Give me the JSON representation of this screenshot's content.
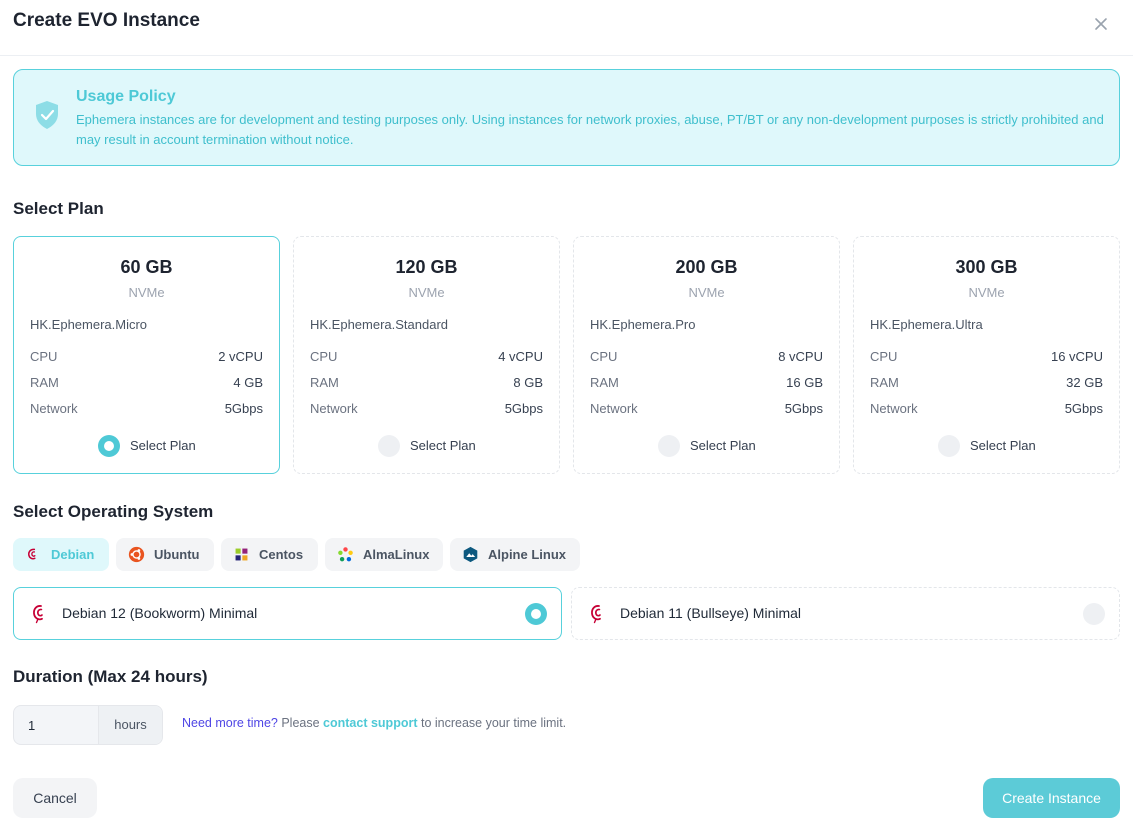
{
  "dialog": {
    "title": "Create EVO Instance"
  },
  "policy": {
    "title": "Usage Policy",
    "text": "Ephemera instances are for development and testing purposes only. Using instances for network proxies, abuse, PT/BT or any non-development purposes is strictly prohibited and may result in account termination without notice."
  },
  "plans_section": {
    "title": "Select Plan"
  },
  "plans": [
    {
      "size": "60 GB",
      "disk": "NVMe",
      "name": "HK.Ephemera.Micro",
      "cpu_label": "CPU",
      "cpu": "2 vCPU",
      "ram_label": "RAM",
      "ram": "4 GB",
      "net_label": "Network",
      "net": "5Gbps",
      "select_label": "Select Plan",
      "selected": true
    },
    {
      "size": "120 GB",
      "disk": "NVMe",
      "name": "HK.Ephemera.Standard",
      "cpu_label": "CPU",
      "cpu": "4 vCPU",
      "ram_label": "RAM",
      "ram": "8 GB",
      "net_label": "Network",
      "net": "5Gbps",
      "select_label": "Select Plan",
      "selected": false
    },
    {
      "size": "200 GB",
      "disk": "NVMe",
      "name": "HK.Ephemera.Pro",
      "cpu_label": "CPU",
      "cpu": "8 vCPU",
      "ram_label": "RAM",
      "ram": "16 GB",
      "net_label": "Network",
      "net": "5Gbps",
      "select_label": "Select Plan",
      "selected": false
    },
    {
      "size": "300 GB",
      "disk": "NVMe",
      "name": "HK.Ephemera.Ultra",
      "cpu_label": "CPU",
      "cpu": "16 vCPU",
      "ram_label": "RAM",
      "ram": "32 GB",
      "net_label": "Network",
      "net": "5Gbps",
      "select_label": "Select Plan",
      "selected": false
    }
  ],
  "os_section": {
    "title": "Select Operating System"
  },
  "os_tabs": [
    {
      "label": "Debian",
      "icon": "debian-icon",
      "active": true
    },
    {
      "label": "Ubuntu",
      "icon": "ubuntu-icon",
      "active": false
    },
    {
      "label": "Centos",
      "icon": "centos-icon",
      "active": false
    },
    {
      "label": "AlmaLinux",
      "icon": "almalinux-icon",
      "active": false
    },
    {
      "label": "Alpine Linux",
      "icon": "alpine-icon",
      "active": false
    }
  ],
  "os_versions": [
    {
      "label": "Debian 12 (Bookworm) Minimal",
      "icon": "debian-icon",
      "selected": true
    },
    {
      "label": "Debian 11 (Bullseye) Minimal",
      "icon": "debian-icon",
      "selected": false
    }
  ],
  "duration": {
    "title": "Duration (Max 24 hours)",
    "value": "1",
    "unit": "hours",
    "help_prefix": "Need more time?",
    "help_mid": " Please ",
    "help_link": "contact support",
    "help_suffix": " to increase your time limit."
  },
  "footer": {
    "cancel_label": "Cancel",
    "create_label": "Create Instance"
  },
  "colors": {
    "accent": "#4ec9d6",
    "policy_bg": "#dff8fb",
    "link": "#4f46e5"
  }
}
